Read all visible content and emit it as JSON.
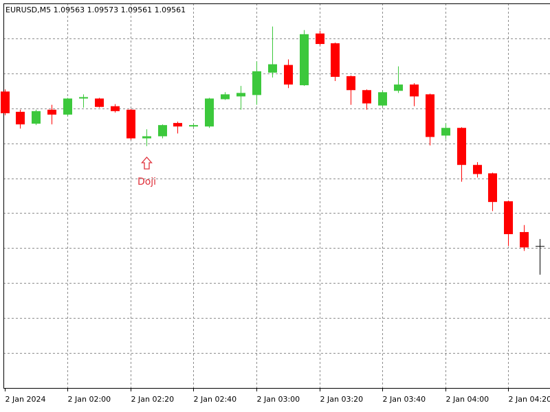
{
  "chart_data": {
    "type": "candlestick",
    "title": "EURUSD,M5  1.09563 1.09573 1.09561 1.09561",
    "annotation": "Doji",
    "categories": [
      "2 Jan 2024",
      null,
      null,
      null,
      "2 Jan 02:00",
      null,
      null,
      null,
      "2 Jan 02:20",
      null,
      null,
      null,
      "2 Jan 02:40",
      null,
      null,
      null,
      "2 Jan 03:00",
      null,
      null,
      null,
      "2 Jan 03:20",
      null,
      null,
      null,
      "2 Jan 03:40",
      null,
      null,
      null,
      "2 Jan 04:00",
      null,
      null,
      null,
      "2 Jan 04:20",
      null,
      null
    ],
    "open": [
      1.09774,
      1.09745,
      1.09728,
      1.09748,
      1.09741,
      1.09764,
      1.09764,
      1.09753,
      1.09748,
      1.09707,
      1.0971,
      1.09729,
      1.09724,
      1.09724,
      1.09763,
      1.09767,
      1.09769,
      1.09801,
      1.09812,
      1.09783,
      1.09857,
      1.09843,
      1.09796,
      1.09776,
      1.09754,
      1.09775,
      1.09784,
      1.0977,
      1.09711,
      1.09722,
      1.09669,
      1.09657,
      1.09617,
      1.09573,
      1.09553
    ],
    "high": [
      1.09777,
      1.09748,
      1.09748,
      1.09755,
      1.09765,
      1.0977,
      1.09765,
      1.09756,
      1.09749,
      1.0972,
      1.09727,
      1.09731,
      1.09728,
      1.09765,
      1.09773,
      1.09782,
      1.09817,
      1.09867,
      1.0982,
      1.09862,
      1.09861,
      1.09844,
      1.09797,
      1.09777,
      1.09775,
      1.0981,
      1.09786,
      1.09771,
      1.09728,
      1.09723,
      1.09673,
      1.09658,
      1.09618,
      1.09583,
      1.09563
    ],
    "low": [
      1.0974,
      1.09721,
      1.09726,
      1.09727,
      1.09739,
      1.09751,
      1.09751,
      1.09744,
      1.09705,
      1.09696,
      1.09707,
      1.09714,
      1.09723,
      1.09722,
      1.09762,
      1.09748,
      1.09755,
      1.09794,
      1.09779,
      1.09782,
      1.0984,
      1.09789,
      1.09755,
      1.09748,
      1.09752,
      1.09772,
      1.09753,
      1.09697,
      1.09706,
      1.09645,
      1.09651,
      1.09603,
      1.09553,
      1.09546,
      1.09512
    ],
    "close": [
      1.09743,
      1.09727,
      1.09746,
      1.09741,
      1.09764,
      1.09766,
      1.09752,
      1.09746,
      1.09707,
      1.0971,
      1.09726,
      1.09724,
      1.09726,
      1.09764,
      1.0977,
      1.09772,
      1.09803,
      1.09813,
      1.09784,
      1.09856,
      1.09842,
      1.09795,
      1.09776,
      1.09757,
      1.09773,
      1.09784,
      1.09767,
      1.09709,
      1.09722,
      1.09669,
      1.09656,
      1.09616,
      1.0957,
      1.09551,
      1.09553
    ],
    "up_color": "#3cc83c",
    "down_color": "#ff0000",
    "doji_color": "#000000",
    "annotation_color": "#e0303a",
    "ylim": [
      1.0935,
      1.099
    ],
    "yticks": [
      1.094,
      1.0945,
      1.095,
      1.0955,
      1.096,
      1.0965,
      1.097,
      1.0975,
      1.098,
      1.0985
    ],
    "grid": true
  }
}
